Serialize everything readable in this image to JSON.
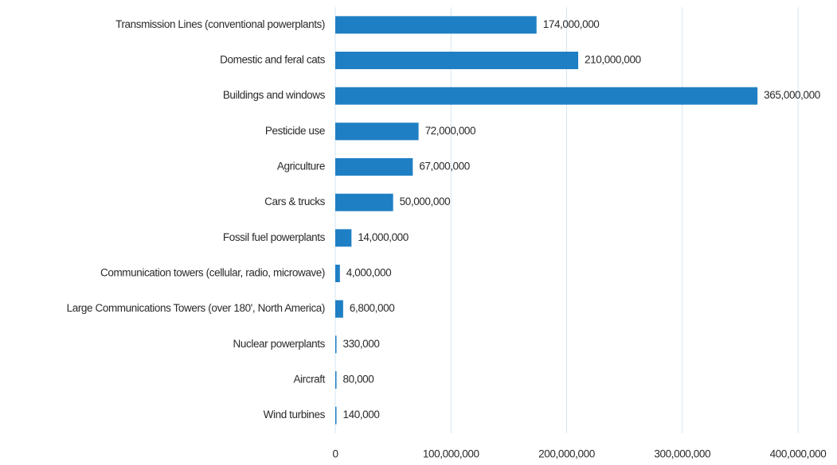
{
  "chart_data": {
    "type": "bar",
    "orientation": "horizontal",
    "categories": [
      "Transmission Lines (conventional powerplants)",
      "Domestic and feral cats",
      "Buildings and windows",
      "Pesticide use",
      "Agriculture",
      "Cars & trucks",
      "Fossil fuel powerplants",
      "Communication towers (cellular, radio, microwave)",
      "Large Communications Towers (over 180', North America)",
      "Nuclear powerplants",
      "Aircraft",
      "Wind turbines"
    ],
    "values": [
      174000000,
      210000000,
      365000000,
      72000000,
      67000000,
      50000000,
      14000000,
      4000000,
      6800000,
      330000,
      80000,
      140000
    ],
    "value_labels": [
      "174,000,000",
      "210,000,000",
      "365,000,000",
      "72,000,000",
      "67,000,000",
      "50,000,000",
      "14,000,000",
      "4,000,000",
      "6,800,000",
      "330,000",
      "80,000",
      "140,000"
    ],
    "color": "#1f7fc4",
    "xlim": [
      0,
      400000000
    ],
    "xticks": [
      0,
      {
        "value": 100000000,
        "label": "100,000,000"
      },
      {
        "value": 200000000,
        "label": "200,000,000"
      },
      {
        "value": 300000000,
        "label": "300,000,000"
      },
      {
        "value": 400000000,
        "label": "400,000,000"
      }
    ],
    "grid": true
  }
}
